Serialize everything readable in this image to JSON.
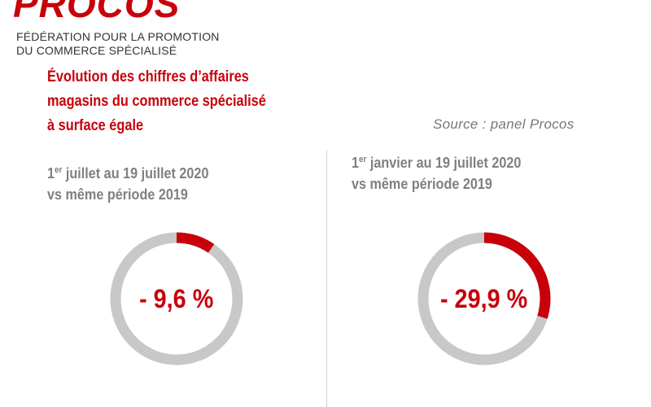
{
  "header": {
    "logo_text": "PROCOS",
    "federation_line1": "FÉDÉRATION POUR LA PROMOTION",
    "federation_line2": "DU COMMERCE SPÉCIALISÉ",
    "title_line1": "Évolution des chiffres d’affaires",
    "title_line2": "magasins du commerce spécialisé",
    "title_line3": "à surface égale",
    "source": "Source : panel Procos"
  },
  "colors": {
    "accent": "#c8000a",
    "ring_gray": "#c8c8c8",
    "label_gray": "#808080"
  },
  "chart_data": [
    {
      "type": "pie",
      "period_day": "1",
      "period_sup": "er",
      "period_rest": " juillet au 19 juillet 2020",
      "comparison": "vs même période 2019",
      "value_label": "- 9,6 %",
      "value": -9.6,
      "segments": [
        {
          "share": 9.6,
          "color": "#c8000a"
        },
        {
          "share": 90.4,
          "color": "#c8c8c8"
        }
      ]
    },
    {
      "type": "pie",
      "period_day": "1",
      "period_sup": "er",
      "period_rest": " janvier au 19 juillet 2020",
      "comparison": "vs même période 2019",
      "value_label": "- 29,9 %",
      "value": -29.9,
      "segments": [
        {
          "share": 29.9,
          "color": "#c8000a"
        },
        {
          "share": 70.1,
          "color": "#c8c8c8"
        }
      ]
    }
  ]
}
